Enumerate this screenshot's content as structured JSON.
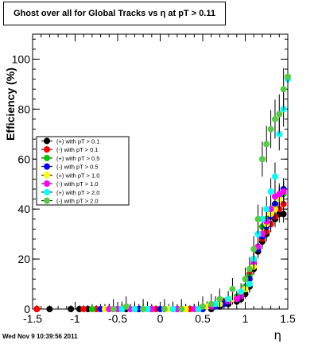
{
  "chart_data": {
    "type": "scatter",
    "title": "Ghost over all for Global Tracks vs η at pT > 0.11",
    "xlabel": "η",
    "ylabel": "Efficiency (%)",
    "xlim": [
      -1.5,
      1.5
    ],
    "ylim": [
      0,
      110
    ],
    "x_ticks": [
      -1.5,
      -1,
      -0.5,
      0,
      0.5,
      1,
      1.5
    ],
    "x_tick_labels": [
      "-1.5",
      "-1",
      "-0.5",
      "0",
      "0.5",
      "1",
      "1.5"
    ],
    "y_ticks": [
      0,
      20,
      40,
      60,
      80,
      100
    ],
    "y_tick_labels": [
      "0",
      "20",
      "40",
      "60",
      "80",
      "100"
    ],
    "legend_position": "left-middle",
    "series": [
      {
        "name": "(+) with pT > 0.1",
        "color": "#000000",
        "err": 1.5,
        "x": [
          -1.45,
          -1.3,
          -1.05,
          -0.95,
          -0.85,
          -0.4,
          -0.25,
          -0.1,
          0.05,
          0.25,
          0.45,
          0.6,
          0.7,
          0.8,
          0.9,
          0.95,
          1.0,
          1.05,
          1.1,
          1.15,
          1.2,
          1.25,
          1.3,
          1.35,
          1.4,
          1.45
        ],
        "y": [
          0,
          0,
          0,
          0,
          0,
          0,
          0,
          0,
          0,
          0,
          0,
          0,
          1,
          2,
          3,
          4,
          6,
          9,
          16,
          23,
          27,
          30,
          34,
          36,
          38,
          38
        ]
      },
      {
        "name": "(-) with pT > 0.1",
        "color": "#ff0000",
        "err": 1.5,
        "x": [
          -1.45,
          -0.9,
          -0.75,
          -0.55,
          -0.3,
          -0.05,
          0.2,
          0.35,
          0.55,
          0.65,
          0.75,
          0.85,
          0.95,
          1.0,
          1.05,
          1.1,
          1.15,
          1.2,
          1.25,
          1.3,
          1.35,
          1.4,
          1.45
        ],
        "y": [
          0,
          0,
          0,
          0,
          0,
          0,
          0,
          0,
          1,
          2,
          3,
          4,
          6,
          9,
          14,
          20,
          24,
          28,
          31,
          34,
          37,
          40,
          42
        ]
      },
      {
        "name": "(+) with pT > 0.5",
        "color": "#00cc00",
        "err": 2,
        "x": [
          -0.8,
          -0.6,
          -0.5,
          -0.3,
          -0.15,
          0.3,
          0.4,
          0.6,
          0.7,
          0.8,
          0.9,
          1.0,
          1.05,
          1.1,
          1.15,
          1.2,
          1.25,
          1.3,
          1.35,
          1.4,
          1.45
        ],
        "y": [
          0,
          0,
          0,
          0,
          0,
          0,
          0,
          1,
          2,
          4,
          5,
          9,
          13,
          20,
          30,
          33,
          36,
          38,
          42,
          44,
          46
        ]
      },
      {
        "name": "(-) with pT > 0.5",
        "color": "#0000ff",
        "err": 2,
        "x": [
          -0.7,
          -0.45,
          -0.25,
          0.0,
          0.15,
          0.5,
          0.65,
          0.75,
          0.9,
          1.0,
          1.05,
          1.1,
          1.15,
          1.2,
          1.25,
          1.3,
          1.35,
          1.4,
          1.45
        ],
        "y": [
          0,
          0,
          0,
          0,
          0,
          0,
          1,
          2,
          4,
          8,
          12,
          18,
          24,
          29,
          33,
          37,
          42,
          45,
          48
        ]
      },
      {
        "name": "(+) with pT > 1.0",
        "color": "#ffff00",
        "err": 2,
        "x": [
          -0.65,
          -0.35,
          -0.2,
          0.1,
          0.3,
          0.55,
          0.7,
          0.85,
          1.0,
          1.1,
          1.15,
          1.2,
          1.25,
          1.3,
          1.35,
          1.4,
          1.45
        ],
        "y": [
          0,
          0,
          0,
          0,
          0,
          1,
          2,
          4,
          8,
          17,
          25,
          30,
          34,
          38,
          40,
          44,
          47
        ]
      },
      {
        "name": "(-) with pT > 1.0",
        "color": "#ff00ff",
        "err": 2,
        "x": [
          -0.6,
          -0.5,
          -0.35,
          -0.1,
          0.2,
          0.4,
          0.6,
          0.8,
          0.9,
          0.95,
          1.05,
          1.1,
          1.15,
          1.2,
          1.25,
          1.3,
          1.35,
          1.4,
          1.45
        ],
        "y": [
          0,
          0,
          0,
          0,
          0,
          0,
          1,
          3,
          4,
          5,
          10,
          19,
          25,
          30,
          35,
          40,
          45,
          46,
          47
        ]
      },
      {
        "name": "(+) with pT > 2.0",
        "color": "#00ffff",
        "err": 3,
        "x": [
          -0.45,
          -0.3,
          -0.15,
          0.15,
          0.45,
          0.65,
          0.8,
          0.95,
          1.05,
          1.1,
          1.15,
          1.2,
          1.25,
          1.3,
          1.35,
          1.4,
          1.45,
          1.5
        ],
        "y": [
          0,
          0,
          0,
          0,
          0,
          2,
          4,
          7,
          10,
          20,
          30,
          36,
          40,
          47,
          53,
          70,
          80,
          92
        ]
      },
      {
        "name": "(-) with pT > 2.0",
        "color": "#55cc44",
        "err": 4,
        "x": [
          -0.55,
          -0.4,
          -0.2,
          0.05,
          0.25,
          0.5,
          0.6,
          0.7,
          0.85,
          1.0,
          1.05,
          1.1,
          1.15,
          1.2,
          1.25,
          1.3,
          1.35,
          1.4,
          1.45,
          1.5
        ],
        "y": [
          0,
          1,
          0,
          0,
          0,
          1,
          2,
          4,
          8,
          12,
          16,
          24,
          36,
          60,
          66,
          72,
          76,
          78,
          88,
          93
        ]
      }
    ]
  },
  "footer": {
    "timestamp": "Wed Nov  9 10:39:56 2011"
  }
}
